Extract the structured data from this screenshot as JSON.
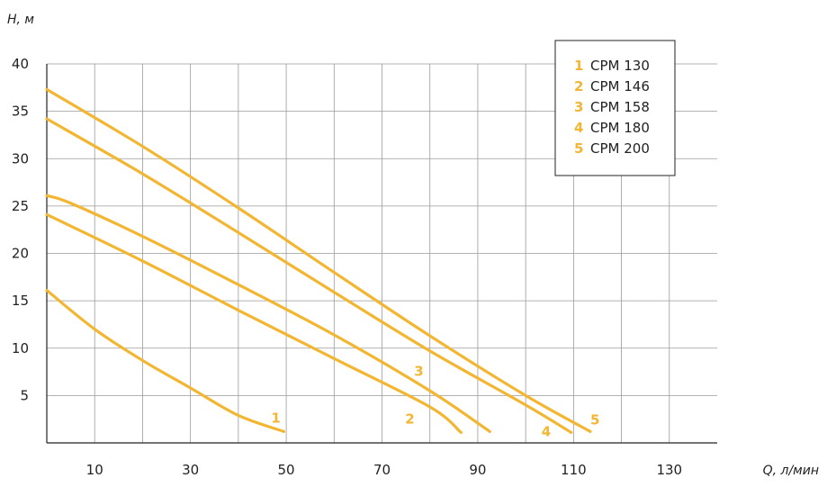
{
  "chart_data": {
    "type": "line",
    "xlabel": "Q, л/мин",
    "ylabel": "H, м",
    "xlim": [
      0,
      140
    ],
    "ylim": [
      0,
      40
    ],
    "x_ticks": [
      10,
      30,
      50,
      70,
      90,
      110,
      130
    ],
    "x_tick_labels": [
      "10",
      "30",
      "50",
      "70",
      "90",
      "110",
      "130"
    ],
    "y_ticks": [
      5,
      10,
      15,
      20,
      25,
      30,
      35,
      40
    ],
    "y_tick_labels": [
      "5",
      "10",
      "15",
      "20",
      "25",
      "30",
      "35",
      "40"
    ],
    "grid": true,
    "legend_position": "top-right",
    "line_color": "#f2b632",
    "series": [
      {
        "name": "CPM 130",
        "label": "1",
        "number": "1",
        "points": [
          [
            0,
            16.1
          ],
          [
            10,
            12.0
          ],
          [
            20,
            8.7
          ],
          [
            30,
            5.8
          ],
          [
            40,
            2.9
          ],
          [
            49.5,
            1.2
          ]
        ]
      },
      {
        "name": "CPM 146",
        "label": "2",
        "number": "2",
        "points": [
          [
            0,
            24.1
          ],
          [
            20,
            19.2
          ],
          [
            40,
            14.0
          ],
          [
            60,
            8.9
          ],
          [
            80,
            3.8
          ],
          [
            86.5,
            1.1
          ]
        ]
      },
      {
        "name": "CPM 158",
        "label": "3",
        "number": "3",
        "points": [
          [
            0,
            26.1
          ],
          [
            5,
            25.3
          ],
          [
            20,
            21.8
          ],
          [
            40,
            16.7
          ],
          [
            60,
            11.4
          ],
          [
            80,
            5.5
          ],
          [
            92.5,
            1.2
          ]
        ]
      },
      {
        "name": "CPM 180",
        "label": "4",
        "number": "4",
        "points": [
          [
            0,
            34.2
          ],
          [
            20,
            28.4
          ],
          [
            40,
            22.2
          ],
          [
            60,
            15.9
          ],
          [
            80,
            9.7
          ],
          [
            100,
            4.0
          ],
          [
            109.5,
            1.1
          ]
        ]
      },
      {
        "name": "CPM 200",
        "label": "5",
        "number": "5",
        "points": [
          [
            0,
            37.3
          ],
          [
            20,
            31.3
          ],
          [
            40,
            24.8
          ],
          [
            60,
            18.0
          ],
          [
            80,
            11.3
          ],
          [
            100,
            5.0
          ],
          [
            113.5,
            1.2
          ]
        ]
      }
    ]
  }
}
